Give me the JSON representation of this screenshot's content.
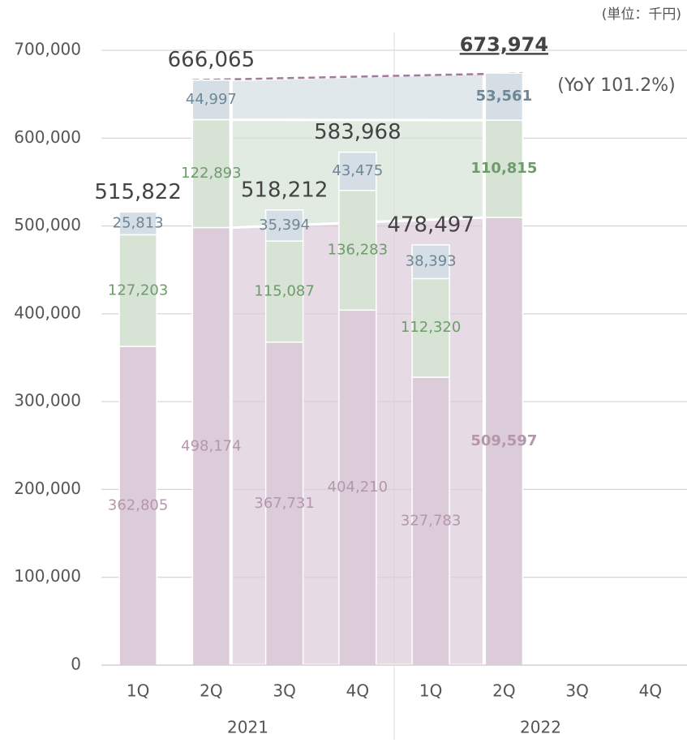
{
  "chart_data": {
    "type": "bar",
    "stacked": true,
    "unit_note": "(単位：千円)",
    "annotation": "(YoY 101.2%)",
    "categories": [
      "1Q",
      "2Q",
      "3Q",
      "4Q",
      "1Q",
      "2Q",
      "3Q",
      "4Q"
    ],
    "groups": [
      {
        "label": "2021",
        "span": 4
      },
      {
        "label": "2022",
        "span": 4
      }
    ],
    "highlight_index": 5,
    "series": [
      {
        "color": "#dccbd9",
        "label_color": "#b496ad",
        "values": [
          362805,
          498174,
          367731,
          404210,
          327783,
          509597,
          null,
          null
        ],
        "value_labels": [
          "362,805",
          "498,174",
          "367,731",
          "404,210",
          "327,783",
          "509,597",
          null,
          null
        ]
      },
      {
        "color": "#d6e3d5",
        "label_color": "#6f9b6c",
        "values": [
          127203,
          122893,
          115087,
          136283,
          112320,
          110815,
          null,
          null
        ],
        "value_labels": [
          "127,203",
          "122,893",
          "115,087",
          "136,283",
          "112,320",
          "110,815",
          null,
          null
        ]
      },
      {
        "color": "#d4dee4",
        "label_color": "#6e8797",
        "values": [
          25813,
          44997,
          35394,
          43475,
          38393,
          53561,
          null,
          null
        ],
        "value_labels": [
          "25,813",
          "44,997",
          "35,394",
          "43,475",
          "38,393",
          "53,561",
          null,
          null
        ]
      }
    ],
    "totals": [
      515822,
      666065,
      518212,
      583968,
      478497,
      673974,
      null,
      null
    ],
    "total_labels": [
      "515,822",
      "666,065",
      "518,212",
      "583,968",
      "478,497",
      "673,974",
      null,
      null
    ],
    "ylim": [
      0,
      700000
    ],
    "yticks": [
      0,
      {
        "value": 100000,
        "label": "100,000"
      },
      {
        "value": 200000,
        "label": "200,000"
      },
      {
        "value": 300000,
        "label": "300,000"
      },
      {
        "value": 400000,
        "label": "400,000"
      },
      {
        "value": 500000,
        "label": "500,000"
      },
      {
        "value": 600000,
        "label": "600,000"
      },
      {
        "value": 700000,
        "label": "700,000"
      }
    ],
    "grid": true
  }
}
